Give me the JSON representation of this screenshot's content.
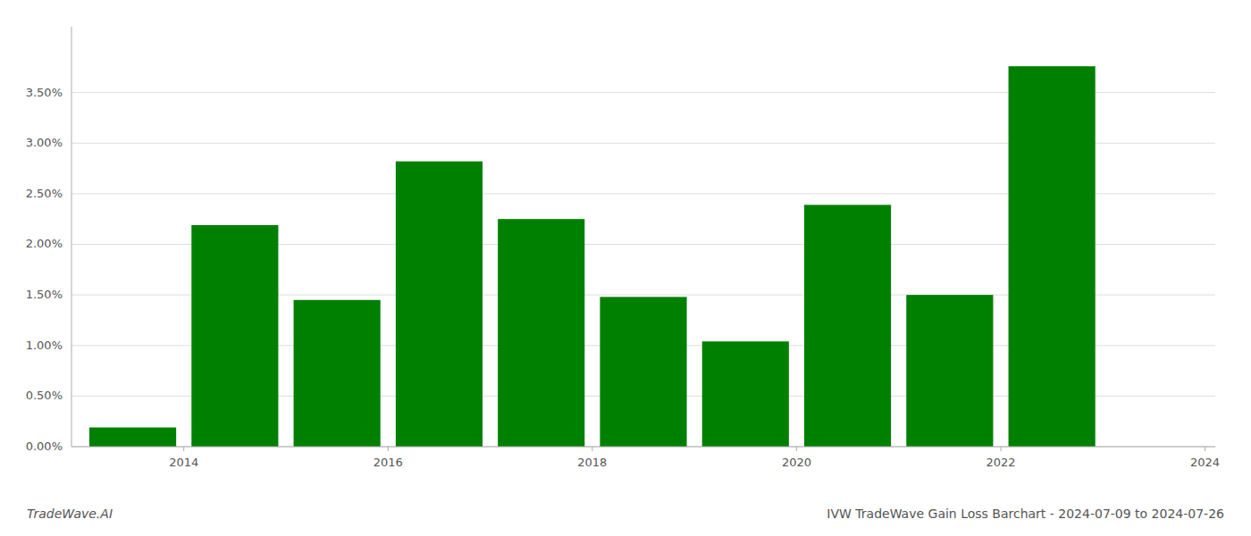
{
  "chart_data": {
    "type": "bar",
    "title": "IVW TradeWave Gain Loss Barchart - 2024-07-09 to 2024-07-26",
    "annotations": [
      "TradeWave.AI"
    ],
    "x": [
      2014,
      2015,
      2016,
      2017,
      2018,
      2019,
      2020,
      2021,
      2022,
      2023
    ],
    "values": [
      0.0019,
      0.0219,
      0.0145,
      0.0282,
      0.0225,
      0.0148,
      0.0104,
      0.0239,
      0.015,
      0.0376
    ],
    "color": "#008000",
    "xlim": [
      2013.4,
      2024.6
    ],
    "xticks": [
      {
        "value": 2014.5,
        "label": "2014"
      },
      {
        "value": 2016.5,
        "label": "2016"
      },
      {
        "value": 2018.5,
        "label": "2018"
      },
      {
        "value": 2020.5,
        "label": "2020"
      },
      {
        "value": 2022.5,
        "label": "2022"
      },
      {
        "value": 2024.5,
        "label": "2024"
      }
    ],
    "ylim": [
      0,
      0.0415
    ],
    "yticks": [
      {
        "value": 0.0,
        "label": "0.00%"
      },
      {
        "value": 0.005,
        "label": "0.50%"
      },
      {
        "value": 0.01,
        "label": "1.00%"
      },
      {
        "value": 0.015,
        "label": "1.50%"
      },
      {
        "value": 0.02,
        "label": "2.00%"
      },
      {
        "value": 0.025,
        "label": "2.50%"
      },
      {
        "value": 0.03,
        "label": "3.00%"
      },
      {
        "value": 0.035,
        "label": "3.50%"
      }
    ],
    "grid": true
  }
}
